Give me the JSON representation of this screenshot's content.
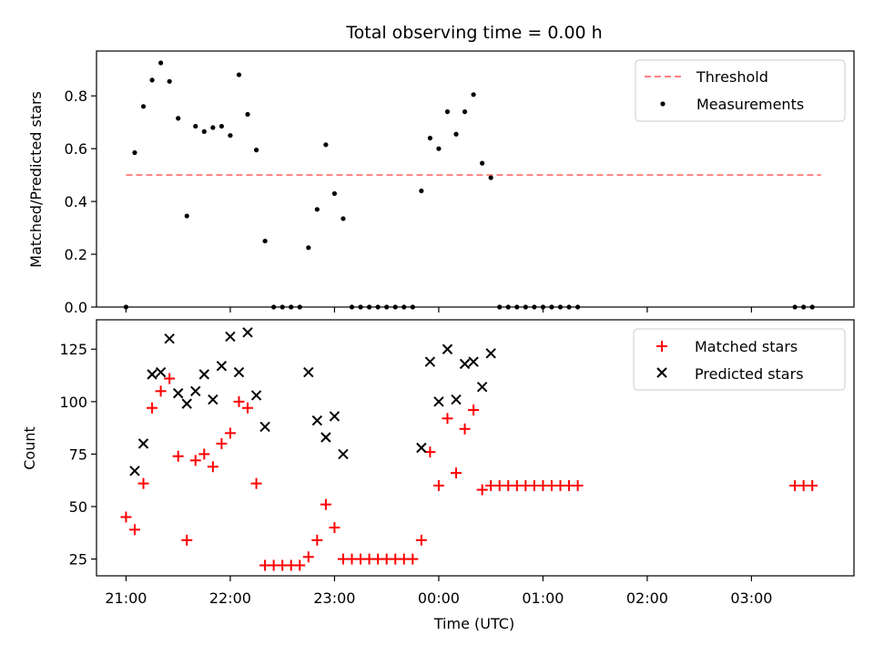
{
  "figure": {
    "title": "Total observing time = 0.00 h",
    "xlabel": "Time (UTC)"
  },
  "colors": {
    "threshold": "#ff8080",
    "measurements": "#000000",
    "matched": "#ff0000",
    "predicted": "#000000"
  },
  "chart_data": [
    {
      "type": "scatter",
      "ylabel": "Matched/Predicted stars",
      "ylim": [
        0,
        0.97
      ],
      "yticks": [
        0.0,
        0.2,
        0.4,
        0.6,
        0.8
      ],
      "ytick_labels": [
        "0.0",
        "0.2",
        "0.4",
        "0.6",
        "0.8"
      ],
      "legend": {
        "placement": "top-right"
      },
      "threshold": {
        "name": "Threshold",
        "value": 0.5,
        "x_range": [
          "21:00",
          "03:40"
        ]
      },
      "series": [
        {
          "name": "Measurements",
          "marker": "dot",
          "points": [
            [
              "21:00",
              0.0
            ],
            [
              "21:05",
              0.585
            ],
            [
              "21:10",
              0.76
            ],
            [
              "21:15",
              0.86
            ],
            [
              "21:20",
              0.925
            ],
            [
              "21:25",
              0.855
            ],
            [
              "21:30",
              0.715
            ],
            [
              "21:35",
              0.345
            ],
            [
              "21:40",
              0.685
            ],
            [
              "21:45",
              0.665
            ],
            [
              "21:50",
              0.68
            ],
            [
              "21:55",
              0.685
            ],
            [
              "22:00",
              0.65
            ],
            [
              "22:05",
              0.88
            ],
            [
              "22:10",
              0.73
            ],
            [
              "22:15",
              0.595
            ],
            [
              "22:20",
              0.25
            ],
            [
              "22:25",
              0.0
            ],
            [
              "22:30",
              0.0
            ],
            [
              "22:35",
              0.0
            ],
            [
              "22:40",
              0.0
            ],
            [
              "22:45",
              0.225
            ],
            [
              "22:50",
              0.37
            ],
            [
              "22:55",
              0.615
            ],
            [
              "23:00",
              0.43
            ],
            [
              "23:05",
              0.335
            ],
            [
              "23:10",
              0.0
            ],
            [
              "23:15",
              0.0
            ],
            [
              "23:20",
              0.0
            ],
            [
              "23:25",
              0.0
            ],
            [
              "23:30",
              0.0
            ],
            [
              "23:35",
              0.0
            ],
            [
              "23:40",
              0.0
            ],
            [
              "23:45",
              0.0
            ],
            [
              "23:50",
              0.44
            ],
            [
              "23:55",
              0.64
            ],
            [
              "00:00",
              0.6
            ],
            [
              "00:05",
              0.74
            ],
            [
              "00:10",
              0.655
            ],
            [
              "00:15",
              0.74
            ],
            [
              "00:20",
              0.805
            ],
            [
              "00:25",
              0.545
            ],
            [
              "00:30",
              0.49
            ],
            [
              "00:35",
              0.0
            ],
            [
              "00:40",
              0.0
            ],
            [
              "00:45",
              0.0
            ],
            [
              "00:50",
              0.0
            ],
            [
              "00:55",
              0.0
            ],
            [
              "01:00",
              0.0
            ],
            [
              "01:05",
              0.0
            ],
            [
              "01:10",
              0.0
            ],
            [
              "01:15",
              0.0
            ],
            [
              "01:20",
              0.0
            ],
            [
              "03:25",
              0.0
            ],
            [
              "03:30",
              0.0
            ],
            [
              "03:35",
              0.0
            ]
          ]
        }
      ]
    },
    {
      "type": "scatter",
      "ylabel": "Count",
      "ylim": [
        17,
        139
      ],
      "yticks": [
        25,
        50,
        75,
        100,
        125
      ],
      "ytick_labels": [
        "25",
        "50",
        "75",
        "100",
        "125"
      ],
      "xticks": [
        "21:00",
        "22:00",
        "23:00",
        "00:00",
        "01:00",
        "02:00",
        "03:00"
      ],
      "xlim": [
        "20:43",
        "03:59"
      ],
      "legend": {
        "placement": "top-right"
      },
      "series": [
        {
          "name": "Matched stars",
          "marker": "plus",
          "points": [
            [
              "21:00",
              45
            ],
            [
              "21:05",
              39
            ],
            [
              "21:10",
              61
            ],
            [
              "21:15",
              97
            ],
            [
              "21:20",
              105
            ],
            [
              "21:25",
              111
            ],
            [
              "21:30",
              74
            ],
            [
              "21:35",
              34
            ],
            [
              "21:40",
              72
            ],
            [
              "21:45",
              75
            ],
            [
              "21:50",
              69
            ],
            [
              "21:55",
              80
            ],
            [
              "22:00",
              85
            ],
            [
              "22:05",
              100
            ],
            [
              "22:10",
              97
            ],
            [
              "22:15",
              61
            ],
            [
              "22:20",
              22
            ],
            [
              "22:25",
              22
            ],
            [
              "22:30",
              22
            ],
            [
              "22:35",
              22
            ],
            [
              "22:40",
              22
            ],
            [
              "22:45",
              26
            ],
            [
              "22:50",
              34
            ],
            [
              "22:55",
              51
            ],
            [
              "23:00",
              40
            ],
            [
              "23:05",
              25
            ],
            [
              "23:10",
              25
            ],
            [
              "23:15",
              25
            ],
            [
              "23:20",
              25
            ],
            [
              "23:25",
              25
            ],
            [
              "23:30",
              25
            ],
            [
              "23:35",
              25
            ],
            [
              "23:40",
              25
            ],
            [
              "23:45",
              25
            ],
            [
              "23:50",
              34
            ],
            [
              "23:55",
              76
            ],
            [
              "00:00",
              60
            ],
            [
              "00:05",
              92
            ],
            [
              "00:10",
              66
            ],
            [
              "00:15",
              87
            ],
            [
              "00:20",
              96
            ],
            [
              "00:25",
              58
            ],
            [
              "00:30",
              60
            ],
            [
              "00:35",
              60
            ],
            [
              "00:40",
              60
            ],
            [
              "00:45",
              60
            ],
            [
              "00:50",
              60
            ],
            [
              "00:55",
              60
            ],
            [
              "01:00",
              60
            ],
            [
              "01:05",
              60
            ],
            [
              "01:10",
              60
            ],
            [
              "01:15",
              60
            ],
            [
              "01:20",
              60
            ],
            [
              "03:25",
              60
            ],
            [
              "03:30",
              60
            ],
            [
              "03:35",
              60
            ]
          ]
        },
        {
          "name": "Predicted stars",
          "marker": "x",
          "points": [
            [
              "21:05",
              67
            ],
            [
              "21:10",
              80
            ],
            [
              "21:15",
              113
            ],
            [
              "21:20",
              114
            ],
            [
              "21:25",
              130
            ],
            [
              "21:30",
              104
            ],
            [
              "21:35",
              99
            ],
            [
              "21:40",
              105
            ],
            [
              "21:45",
              113
            ],
            [
              "21:50",
              101
            ],
            [
              "21:55",
              117
            ],
            [
              "22:00",
              131
            ],
            [
              "22:05",
              114
            ],
            [
              "22:10",
              133
            ],
            [
              "22:15",
              103
            ],
            [
              "22:20",
              88
            ],
            [
              "22:45",
              114
            ],
            [
              "22:50",
              91
            ],
            [
              "22:55",
              83
            ],
            [
              "23:00",
              93
            ],
            [
              "23:05",
              75
            ],
            [
              "23:50",
              78
            ],
            [
              "23:55",
              119
            ],
            [
              "00:00",
              100
            ],
            [
              "00:05",
              125
            ],
            [
              "00:10",
              101
            ],
            [
              "00:15",
              118
            ],
            [
              "00:20",
              119
            ],
            [
              "00:25",
              107
            ],
            [
              "00:30",
              123
            ]
          ]
        }
      ]
    }
  ]
}
